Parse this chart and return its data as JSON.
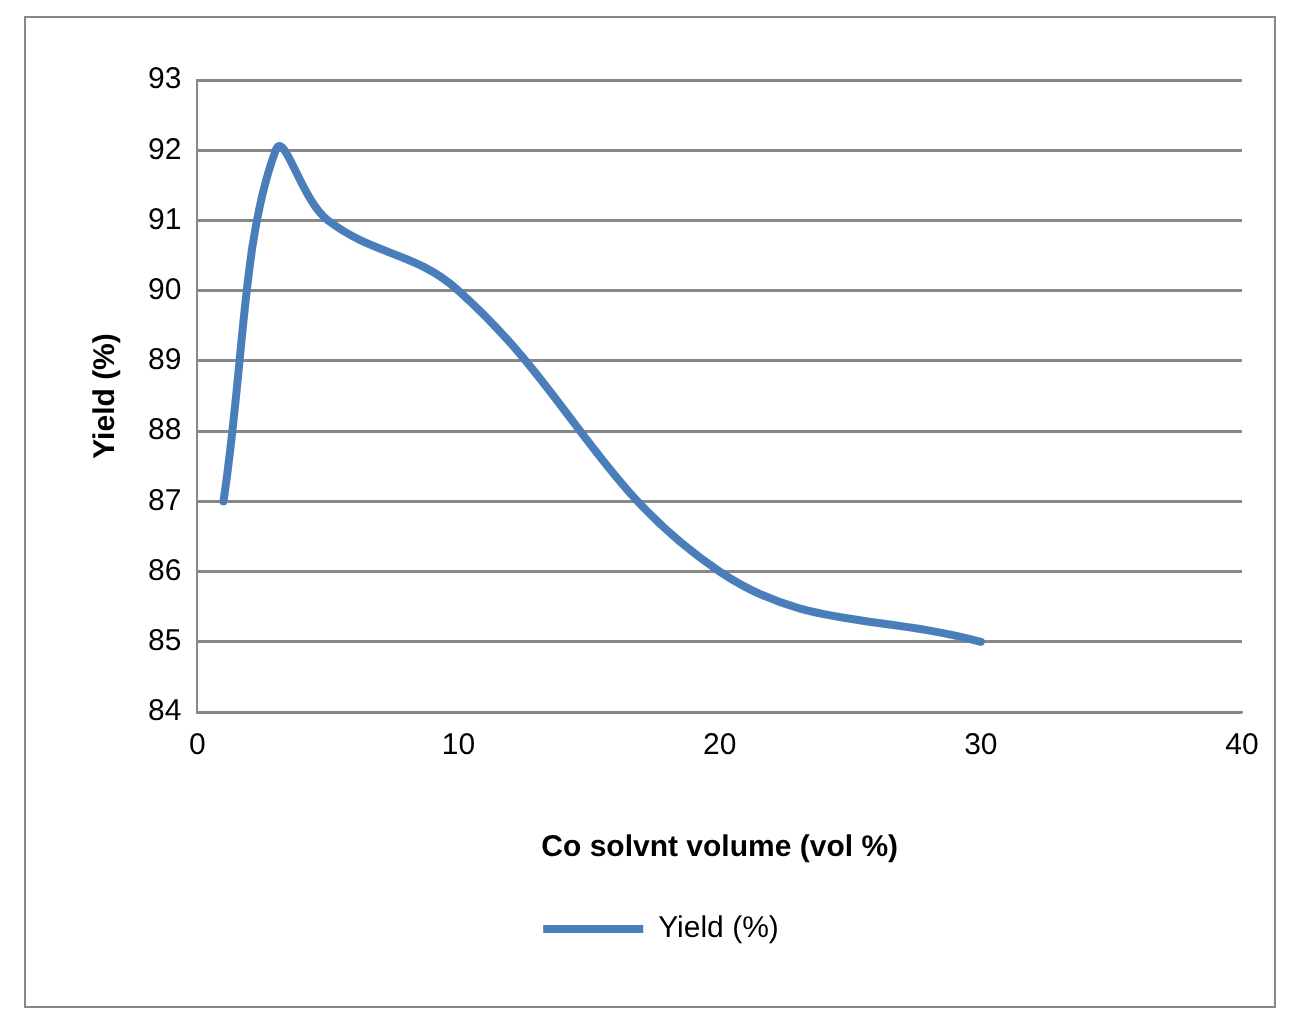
{
  "chart_data": {
    "type": "line",
    "xlabel": "Co solvnt volume (vol %)",
    "ylabel": "Yield (%)",
    "x": [
      1,
      3,
      5,
      10,
      20,
      30
    ],
    "series": [
      {
        "name": "Yield (%)",
        "color": "#4a7ebb",
        "values": [
          87,
          92,
          91,
          90,
          86,
          85
        ]
      }
    ],
    "xlim": [
      0,
      40
    ],
    "xticks": [
      0,
      10,
      20,
      30,
      40
    ],
    "ylim": [
      84,
      93
    ],
    "yticks": [
      84,
      85,
      86,
      87,
      88,
      89,
      90,
      91,
      92,
      93
    ],
    "grid": "y",
    "legend": "bottom",
    "marker": "none",
    "line_style": "solid"
  }
}
